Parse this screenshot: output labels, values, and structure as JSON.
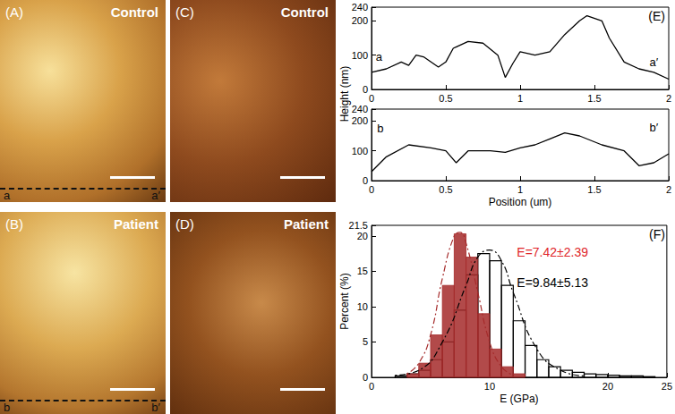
{
  "images": [
    {
      "label": "(A)",
      "title": "Control",
      "profile": [
        "a",
        "a′"
      ]
    },
    {
      "label": "(B)",
      "title": "Patient",
      "profile": [
        "b",
        "b′"
      ]
    },
    {
      "label": "(C)",
      "title": "Control"
    },
    {
      "label": "(D)",
      "title": "Patient"
    }
  ],
  "chart_data": [
    {
      "type": "line",
      "label": "(E)",
      "ylabel": "Height (nm)",
      "color": "#000000",
      "x": [
        0,
        0.1,
        0.2,
        0.25,
        0.3,
        0.35,
        0.45,
        0.5,
        0.55,
        0.65,
        0.75,
        0.85,
        0.9,
        0.95,
        1.0,
        1.1,
        1.2,
        1.3,
        1.4,
        1.45,
        1.55,
        1.6,
        1.7,
        1.8,
        1.9,
        2.0
      ],
      "values": [
        50,
        60,
        80,
        70,
        100,
        95,
        65,
        80,
        120,
        140,
        135,
        100,
        35,
        75,
        110,
        100,
        110,
        160,
        200,
        215,
        200,
        150,
        80,
        60,
        50,
        30
      ],
      "xlim": [
        0,
        2
      ],
      "xticks": [
        0,
        0.5,
        1,
        1.5,
        2
      ],
      "ylim": [
        0,
        240
      ],
      "yticks": [
        0,
        100,
        200
      ],
      "annotations": [
        {
          "text": "a",
          "x": 0.05,
          "y": 95
        },
        {
          "text": "a′",
          "x": 1.9,
          "y": 80
        }
      ]
    },
    {
      "type": "line",
      "xlabel": "Position (um)",
      "color": "#000000",
      "x": [
        0,
        0.1,
        0.25,
        0.4,
        0.5,
        0.57,
        0.65,
        0.8,
        0.9,
        1.0,
        1.1,
        1.2,
        1.3,
        1.4,
        1.55,
        1.7,
        1.8,
        1.9,
        2.0
      ],
      "values": [
        30,
        80,
        120,
        110,
        100,
        60,
        100,
        100,
        95,
        110,
        120,
        140,
        160,
        150,
        120,
        100,
        50,
        60,
        90
      ],
      "xlim": [
        0,
        2
      ],
      "xticks": [
        0,
        0.5,
        1,
        1.5,
        2
      ],
      "ylim": [
        0,
        240
      ],
      "yticks": [
        0,
        100,
        200
      ],
      "annotations": [
        {
          "text": "b",
          "x": 0.06,
          "y": 175
        },
        {
          "text": "b′",
          "x": 1.9,
          "y": 180
        }
      ]
    },
    {
      "type": "histogram",
      "label": "(F)",
      "xlabel": "E (GPa)",
      "ylabel": "Percent (%)",
      "xlim": [
        0,
        25
      ],
      "xticks": [
        0,
        10,
        20
      ],
      "ylim": [
        0,
        21.5
      ],
      "yticks": [
        0,
        5,
        10,
        15,
        20
      ],
      "series": [
        {
          "type": "bar",
          "color": "#a52a2a",
          "bins": [
            3,
            4,
            5,
            6,
            7,
            8,
            9,
            10,
            11,
            12,
            13
          ],
          "values": [
            0.5,
            2,
            6,
            13,
            20.3,
            17,
            9,
            4,
            1.5,
            0.5
          ]
        },
        {
          "type": "bar",
          "color": "#000000",
          "bins": [
            2,
            3,
            4,
            5,
            6,
            7,
            8,
            9,
            10,
            11,
            12,
            13,
            14,
            15,
            16,
            17,
            18,
            19,
            20,
            21,
            22,
            23,
            24
          ],
          "values": [
            0.2,
            0.5,
            1,
            2.5,
            5,
            9.5,
            14.5,
            17.5,
            16.5,
            13,
            8,
            4.5,
            2.5,
            1.5,
            1,
            0.7,
            0.5,
            0.4,
            0.3,
            0.2,
            0.2,
            0.1
          ]
        },
        {
          "type": "line",
          "line_style": "dotted",
          "color": "#a52a2a",
          "x": [
            3,
            4,
            5,
            6,
            7,
            7.5,
            8,
            9,
            10,
            11,
            12
          ],
          "values": [
            0.5,
            2,
            6,
            14,
            20,
            20.5,
            19,
            12,
            5,
            1.5,
            0.3
          ]
        },
        {
          "type": "line",
          "line_style": "dotted",
          "color": "#000000",
          "x": [
            2,
            4,
            6,
            8,
            9,
            10,
            11,
            12,
            14,
            16,
            18
          ],
          "values": [
            0.3,
            1,
            5,
            13,
            17,
            18,
            16.5,
            12,
            4,
            1,
            0.2
          ]
        }
      ],
      "annotations": [
        {
          "text": "E=7.42±2.39",
          "x": 12.3,
          "y": 17.7,
          "color": "#e0262a"
        },
        {
          "text": "E=9.84±5.13",
          "x": 12.3,
          "y": 13.4,
          "color": "#000000"
        }
      ]
    }
  ]
}
